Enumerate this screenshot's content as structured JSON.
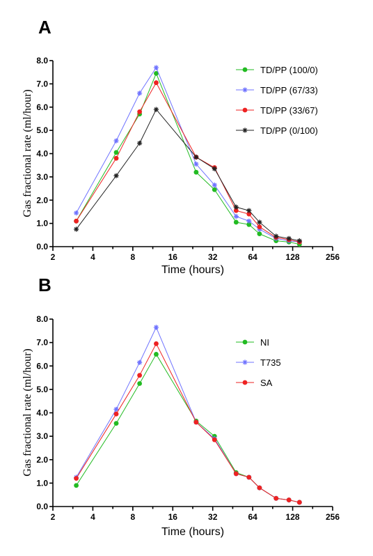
{
  "chart_data": [
    {
      "panel": "A",
      "type": "line",
      "xlabel": "Time (hours)",
      "ylabel": "Gas fractional rate (ml/hour)",
      "xscale": "log2",
      "xlim": [
        2,
        256
      ],
      "ylim": [
        0,
        8
      ],
      "xticks": [
        2,
        4,
        8,
        16,
        32,
        64,
        128,
        256
      ],
      "xtick_labels": [
        "2",
        "4",
        "8",
        "16",
        "32",
        "64",
        "128",
        "256"
      ],
      "yticks": [
        0,
        1,
        2,
        3,
        4,
        5,
        6,
        7,
        8
      ],
      "ytick_labels": [
        "0.0",
        "1.0",
        "2.0",
        "3.0",
        "4.0",
        "5.0",
        "6.0",
        "7.0",
        "8.0"
      ],
      "grid": false,
      "legend": "top-right",
      "x": [
        3,
        6,
        9,
        12,
        24,
        33,
        48,
        60,
        72,
        96,
        120,
        144
      ],
      "series": [
        {
          "name": "TD/PP (100/0)",
          "color": "#22bb22",
          "marker": "circle",
          "values": [
            1.1,
            4.05,
            5.7,
            7.45,
            3.2,
            2.45,
            1.05,
            0.95,
            0.55,
            0.25,
            0.2,
            0.1
          ]
        },
        {
          "name": "TD/PP (67/33)",
          "color": "#6f73ff",
          "marker": "star",
          "values": [
            1.45,
            4.55,
            6.6,
            7.7,
            3.55,
            2.65,
            1.3,
            1.1,
            0.75,
            0.35,
            0.25,
            0.2
          ]
        },
        {
          "name": "TD/PP (33/67)",
          "color": "#ee2222",
          "marker": "circle",
          "values": [
            1.1,
            3.8,
            5.8,
            7.05,
            3.85,
            3.4,
            1.55,
            1.4,
            0.85,
            0.4,
            0.3,
            0.2
          ]
        },
        {
          "name": "TD/PP (0/100)",
          "color": "#222222",
          "marker": "star",
          "values": [
            0.75,
            3.05,
            4.45,
            5.9,
            3.85,
            3.35,
            1.7,
            1.55,
            1.05,
            0.45,
            0.35,
            0.25
          ]
        }
      ]
    },
    {
      "panel": "B",
      "type": "line",
      "xlabel": "Time (hours)",
      "ylabel": "Gas fractional rate (ml/hour)",
      "xscale": "log2",
      "xlim": [
        2,
        256
      ],
      "ylim": [
        0,
        8
      ],
      "xticks": [
        2,
        4,
        8,
        16,
        32,
        64,
        128,
        256
      ],
      "xtick_labels": [
        "2",
        "4",
        "8",
        "16",
        "32",
        "64",
        "128",
        "256"
      ],
      "yticks": [
        0,
        1,
        2,
        3,
        4,
        5,
        6,
        7,
        8
      ],
      "ytick_labels": [
        "0.0",
        "1.0",
        "2.0",
        "3.0",
        "4.0",
        "5.0",
        "6.0",
        "7.0",
        "8.0"
      ],
      "grid": false,
      "legend": "top-right",
      "x": [
        3,
        6,
        9,
        12,
        24,
        33,
        48,
        60,
        72,
        96,
        120,
        144
      ],
      "series": [
        {
          "name": "NI",
          "color": "#22bb22",
          "marker": "circle",
          "values": [
            0.9,
            3.55,
            5.25,
            6.5,
            3.65,
            3.0,
            1.45,
            1.25,
            0.8,
            0.35,
            0.28,
            0.18
          ]
        },
        {
          "name": "T735",
          "color": "#6f73ff",
          "marker": "star",
          "values": [
            1.25,
            4.15,
            6.15,
            7.65,
            3.6,
            2.9,
            1.4,
            1.25,
            0.8,
            0.35,
            0.28,
            0.18
          ]
        },
        {
          "name": "SA",
          "color": "#ee2222",
          "marker": "circle",
          "values": [
            1.2,
            3.95,
            5.6,
            6.95,
            3.6,
            2.85,
            1.4,
            1.25,
            0.8,
            0.35,
            0.28,
            0.18
          ]
        }
      ]
    }
  ]
}
